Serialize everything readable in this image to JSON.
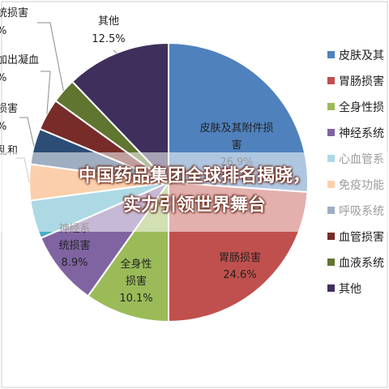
{
  "headline": {
    "line1": "中国药品集团全球排名揭晓，",
    "line2": "实力引领世界舞台"
  },
  "chart_data": {
    "type": "pie",
    "title": "",
    "slices": [
      {
        "label": "皮肤及其附件损害",
        "value": 26.9,
        "color": "#4f81bd"
      },
      {
        "label": "胃肠损害",
        "value": 24.6,
        "color": "#c0504d"
      },
      {
        "label": "全身性损害",
        "value": 10.1,
        "color": "#9bbb59"
      },
      {
        "label": "神经系统损害",
        "value": 8.9,
        "color": "#8064a2"
      },
      {
        "label": "心血管系统损害",
        "value": 4.6,
        "color": "#4bacc6"
      },
      {
        "label": "免疫功能紊乱",
        "value": 4.3,
        "color": "#f79646"
      },
      {
        "label": "呼吸系统损害",
        "value": 4.3,
        "color": "#2c4d75"
      },
      {
        "label": "血管损害",
        "value": 3.8,
        "color": "#772c2a"
      },
      {
        "label": "血液系统损害",
        "value": 3.0,
        "color": "#5f7530"
      },
      {
        "label": "其他",
        "value": 12.5,
        "color": "#3f2f5c"
      }
    ],
    "inside_labels": [
      {
        "lines": [
          "皮肤及其附件损",
          "害",
          "26.9%"
        ]
      },
      {
        "lines": [
          "胃肠损害",
          "24.6%"
        ]
      },
      {
        "lines": [
          "全身性",
          "损害",
          "10.1%"
        ]
      },
      {
        "lines": [
          "神经系",
          "统损害",
          "8.9%"
        ]
      }
    ],
    "outside_labels": [
      {
        "lines": [
          "其他",
          "12.5%"
        ]
      },
      {
        "lines": [
          "统损害",
          "%"
        ]
      },
      {
        "lines": [
          "加出凝血",
          "%"
        ]
      },
      {
        "lines": [
          "损害",
          "%"
        ]
      },
      {
        "lines": [
          "乱和"
        ]
      }
    ],
    "legend": {
      "position": "right",
      "entries": [
        "皮肤及其",
        "胃肠损害",
        "全身性损",
        "神经系统",
        "心血管系",
        "免疫功能",
        "呼吸系统",
        "血管损害",
        "血液系统",
        "其他"
      ]
    }
  }
}
